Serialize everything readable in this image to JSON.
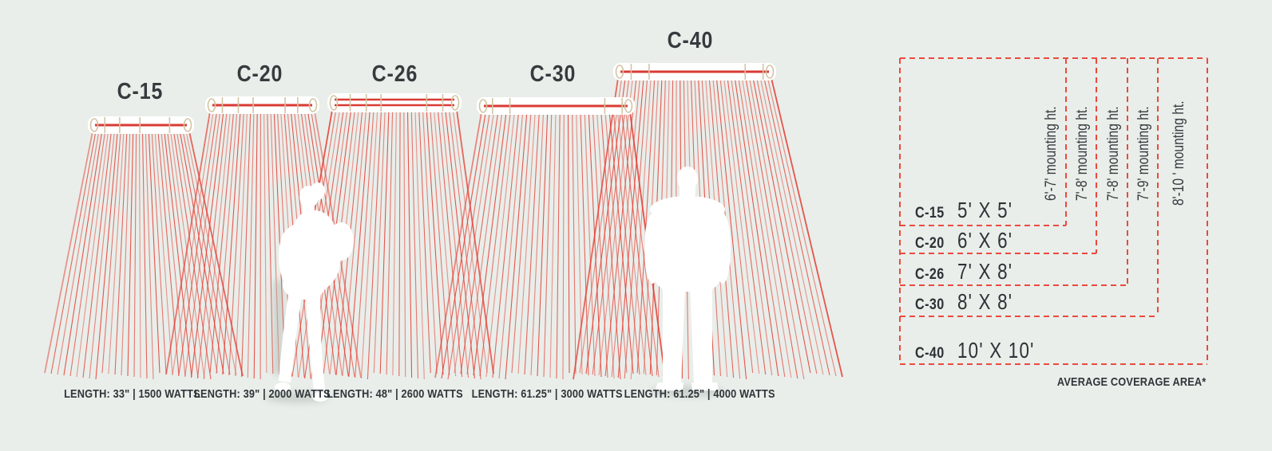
{
  "heaters": [
    {
      "model": "C-15",
      "spec": "LENGTH: 33\" | 1500 WATTS",
      "coverage": "5' X 5'",
      "mounting_height": "6'-7' mounting ht."
    },
    {
      "model": "C-20",
      "spec": "LENGTH: 39\" | 2000 WATTS",
      "coverage": "6' X 6'",
      "mounting_height": "7'-8' mounting ht."
    },
    {
      "model": "C-26",
      "spec": "LENGTH: 48\" | 2600 WATTS",
      "coverage": "7' X 8'",
      "mounting_height": "7'-8' mounting ht."
    },
    {
      "model": "C-30",
      "spec": "LENGTH: 61.25\" | 3000 WATTS",
      "coverage": "8' X 8'",
      "mounting_height": "7'-9' mounting ht."
    },
    {
      "model": "C-40",
      "spec": "LENGTH: 61.25\" | 4000 WATTS",
      "coverage": "10' X 10'",
      "mounting_height": "8'-10 ' mounting ht."
    }
  ],
  "coverage_panel": {
    "footnote": "AVERAGE COVERAGE AREA*"
  },
  "colors": {
    "background": "#e9eeea",
    "ray_red": "#e63b31",
    "element_red": "#d93a33",
    "dash_red": "#ea4a3e",
    "bracket_beige": "#d3c5a4",
    "text_dark": "#363b3e",
    "figure_white": "#ffffff"
  }
}
